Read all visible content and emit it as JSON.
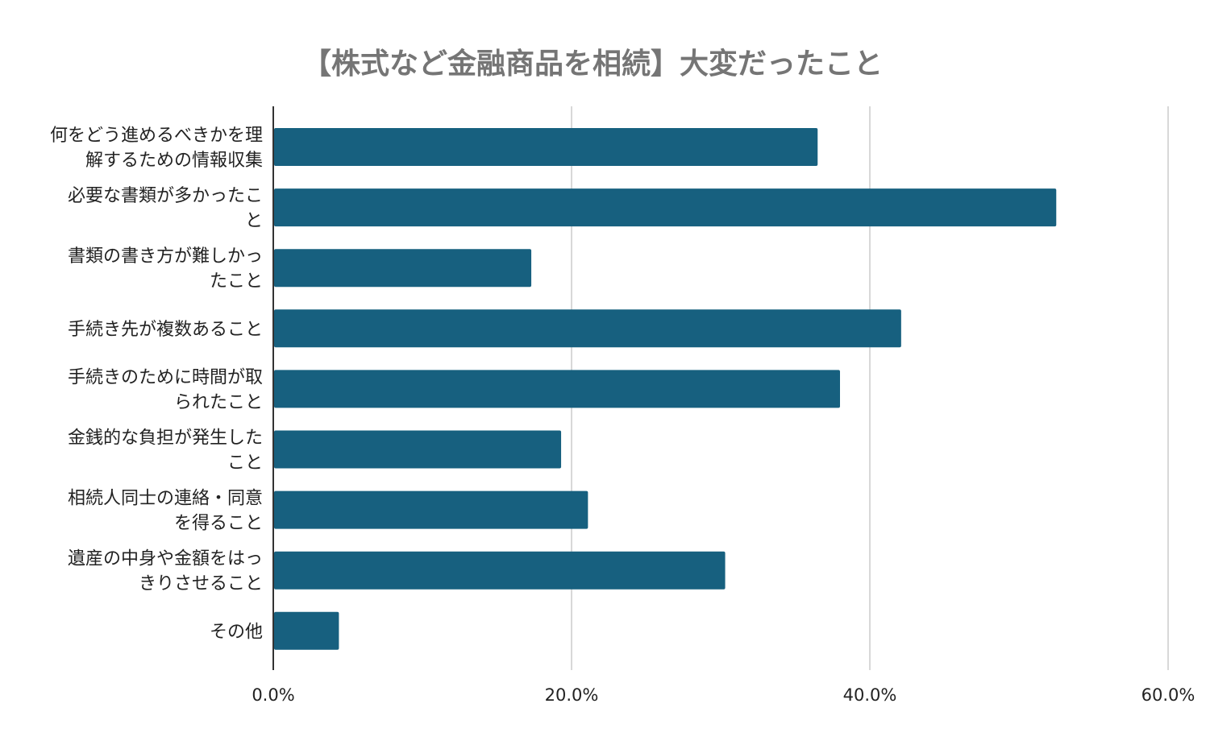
{
  "chart_data": {
    "type": "bar",
    "orientation": "horizontal",
    "title": "【株式など金融商品を相続】大変だったこと",
    "categories": [
      [
        "何をどう進めるべきかを理",
        "解するための情報収集"
      ],
      [
        "必要な書類が多かったこ",
        "と"
      ],
      [
        "書類の書き方が難しかっ",
        "たこと"
      ],
      [
        "手続き先が複数あること"
      ],
      [
        "手続きのために時間が取",
        "られたこと"
      ],
      [
        "金銭的な負担が発生した",
        "こと"
      ],
      [
        "相続人同士の連絡・同意",
        "を得ること"
      ],
      [
        "遺産の中身や金額をはっ",
        "きりさせること"
      ],
      [
        "その他"
      ]
    ],
    "values": [
      36.5,
      52.5,
      17.3,
      42.1,
      38.0,
      19.3,
      21.1,
      30.3,
      4.4
    ],
    "xlim": [
      0,
      60
    ],
    "xticks": [
      "0.0%",
      "20.0%",
      "40.0%",
      "60.0%"
    ],
    "grid": true,
    "bar_color": "#17607f",
    "grid_color": "#cccccc",
    "axis_color": "#333333"
  }
}
